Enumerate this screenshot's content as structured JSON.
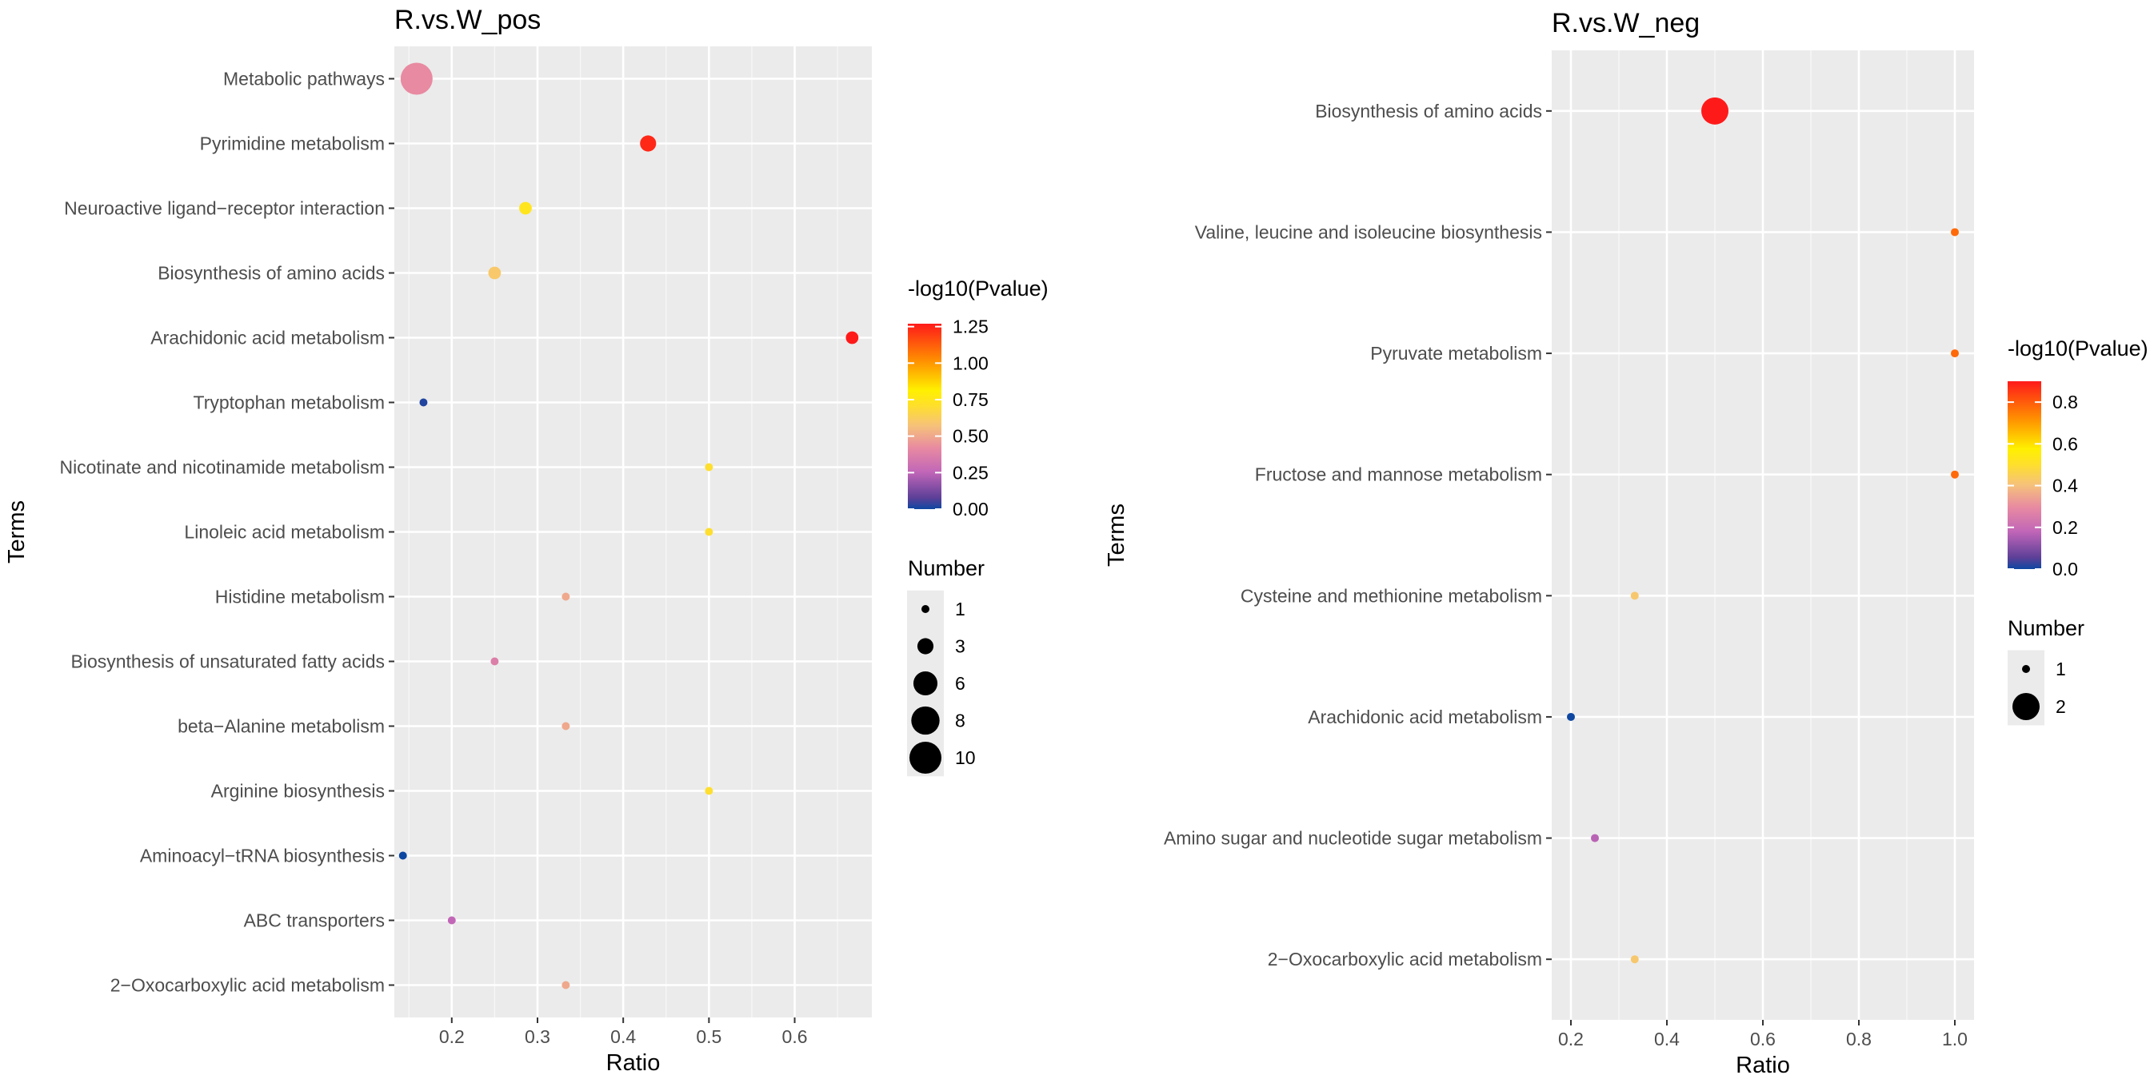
{
  "chart_data": [
    {
      "type": "scatter",
      "title": "R.vs.W_pos",
      "xlabel": "Ratio",
      "ylabel": "Terms",
      "xlim": [
        0.133,
        0.69
      ],
      "xticks": [
        0.2,
        0.3,
        0.4,
        0.5,
        0.6
      ],
      "xtick_labels": [
        "0.2",
        "0.3",
        "0.4",
        "0.5",
        "0.6"
      ],
      "grid": true,
      "terms": [
        "Metabolic pathways",
        "Pyrimidine metabolism",
        "Neuroactive ligand−receptor interaction",
        "Biosynthesis of amino acids",
        "Arachidonic acid metabolism",
        "Tryptophan metabolism",
        "Nicotinate and nicotinamide metabolism",
        "Linoleic acid metabolism",
        "Histidine metabolism",
        "Biosynthesis of unsaturated fatty acids",
        "beta−Alanine metabolism",
        "Arginine biosynthesis",
        "Aminoacyl−tRNA biosynthesis",
        "ABC transporters",
        "2−Oxocarboxylic acid metabolism"
      ],
      "points": [
        {
          "term": "Metabolic pathways",
          "ratio": 0.159,
          "number": 10,
          "neglog10p": 0.42
        },
        {
          "term": "Pyrimidine metabolism",
          "ratio": 0.429,
          "number": 3,
          "neglog10p": 1.24
        },
        {
          "term": "Neuroactive ligand−receptor interaction",
          "ratio": 0.286,
          "number": 2,
          "neglog10p": 0.74
        },
        {
          "term": "Biosynthesis of amino acids",
          "ratio": 0.25,
          "number": 2,
          "neglog10p": 0.6
        },
        {
          "term": "Arachidonic acid metabolism",
          "ratio": 0.667,
          "number": 2,
          "neglog10p": 1.27
        },
        {
          "term": "Tryptophan metabolism",
          "ratio": 0.167,
          "number": 1,
          "neglog10p": 0.02
        },
        {
          "term": "Nicotinate and nicotinamide metabolism",
          "ratio": 0.5,
          "number": 1,
          "neglog10p": 0.7
        },
        {
          "term": "Linoleic acid metabolism",
          "ratio": 0.5,
          "number": 1,
          "neglog10p": 0.7
        },
        {
          "term": "Histidine metabolism",
          "ratio": 0.333,
          "number": 1,
          "neglog10p": 0.5
        },
        {
          "term": "Biosynthesis of unsaturated fatty acids",
          "ratio": 0.25,
          "number": 1,
          "neglog10p": 0.37
        },
        {
          "term": "beta−Alanine metabolism",
          "ratio": 0.333,
          "number": 1,
          "neglog10p": 0.5
        },
        {
          "term": "Arginine biosynthesis",
          "ratio": 0.5,
          "number": 1,
          "neglog10p": 0.7
        },
        {
          "term": "Aminoacyl−tRNA biosynthesis",
          "ratio": 0.143,
          "number": 1,
          "neglog10p": 0.0
        },
        {
          "term": "ABC transporters",
          "ratio": 0.2,
          "number": 1,
          "neglog10p": 0.26
        },
        {
          "term": "2−Oxocarboxylic acid metabolism",
          "ratio": 0.333,
          "number": 1,
          "neglog10p": 0.5
        }
      ],
      "color_legend": {
        "title": "-log10(Pvalue)",
        "min": 0.0,
        "max": 1.27,
        "ticks": [
          0.0,
          0.25,
          0.5,
          0.75,
          1.0,
          1.25
        ],
        "tick_labels": [
          "0.00",
          "0.25",
          "0.50",
          "0.75",
          "1.00",
          "1.25"
        ]
      },
      "size_legend": {
        "title": "Number",
        "values": [
          1,
          3,
          6,
          8,
          10
        ],
        "labels": [
          "1",
          "3",
          "6",
          "8",
          "10"
        ]
      }
    },
    {
      "type": "scatter",
      "title": "R.vs.W_neg",
      "xlabel": "Ratio",
      "ylabel": "Terms",
      "xlim": [
        0.16,
        1.04
      ],
      "xticks": [
        0.2,
        0.4,
        0.6,
        0.8,
        1.0
      ],
      "xtick_labels": [
        "0.2",
        "0.4",
        "0.6",
        "0.8",
        "1.0"
      ],
      "grid": true,
      "terms": [
        "Biosynthesis of amino acids",
        "Valine, leucine and isoleucine biosynthesis",
        "Pyruvate metabolism",
        "Fructose and mannose metabolism",
        "Cysteine and methionine metabolism",
        "Arachidonic acid metabolism",
        "Amino sugar and nucleotide sugar metabolism",
        "2−Oxocarboxylic acid metabolism"
      ],
      "points": [
        {
          "term": "Biosynthesis of amino acids",
          "ratio": 0.5,
          "number": 2,
          "neglog10p": 0.9
        },
        {
          "term": "Valine, leucine and isoleucine biosynthesis",
          "ratio": 1.0,
          "number": 1,
          "neglog10p": 0.78
        },
        {
          "term": "Pyruvate metabolism",
          "ratio": 1.0,
          "number": 1,
          "neglog10p": 0.78
        },
        {
          "term": "Fructose and mannose metabolism",
          "ratio": 1.0,
          "number": 1,
          "neglog10p": 0.78
        },
        {
          "term": "Cysteine and methionine metabolism",
          "ratio": 0.333,
          "number": 1,
          "neglog10p": 0.42
        },
        {
          "term": "Arachidonic acid metabolism",
          "ratio": 0.2,
          "number": 1,
          "neglog10p": 0.0
        },
        {
          "term": "Amino sugar and nucleotide sugar metabolism",
          "ratio": 0.25,
          "number": 1,
          "neglog10p": 0.17
        },
        {
          "term": "2−Oxocarboxylic acid metabolism",
          "ratio": 0.333,
          "number": 1,
          "neglog10p": 0.42
        }
      ],
      "color_legend": {
        "title": "-log10(Pvalue)",
        "min": 0.0,
        "max": 0.9,
        "ticks": [
          0.0,
          0.2,
          0.4,
          0.6,
          0.8
        ],
        "tick_labels": [
          "0.0",
          "0.2",
          "0.4",
          "0.6",
          "0.8"
        ]
      },
      "size_legend": {
        "title": "Number",
        "values": [
          1,
          2
        ],
        "labels": [
          "1",
          "2"
        ]
      }
    }
  ]
}
